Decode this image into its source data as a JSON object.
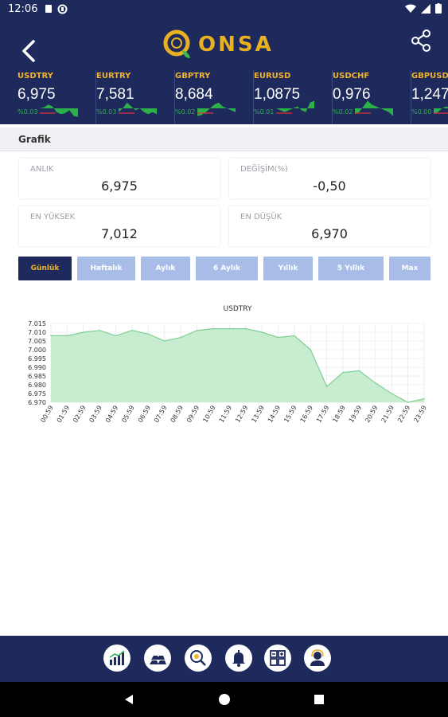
{
  "status_bar": {
    "time": "12:06"
  },
  "header": {
    "logo_text": "ONSA"
  },
  "ticker": [
    {
      "symbol": "USDTRY",
      "value": "6,975",
      "change": "%0.03",
      "spark": [
        0.5,
        0.55,
        0.7,
        0.6,
        0.3,
        0.2,
        0.25,
        0.4,
        0.1,
        0.05
      ]
    },
    {
      "symbol": "EURTRY",
      "value": "7,581",
      "change": "%0.03",
      "spark": [
        0.3,
        0.5,
        0.8,
        0.6,
        0.4,
        0.5,
        0.3,
        0.2,
        0.3,
        0.2
      ]
    },
    {
      "symbol": "GBPTRY",
      "value": "8,684",
      "change": "%0.02",
      "spark": [
        0.1,
        0.15,
        0.3,
        0.5,
        0.7,
        0.8,
        0.6,
        0.5,
        0.4,
        0.3
      ]
    },
    {
      "symbol": "EURUSD",
      "value": "1,0875",
      "change": "%0.01",
      "spark": [
        0.5,
        0.4,
        0.3,
        0.4,
        0.5,
        0.6,
        0.4,
        0.3,
        0.8,
        0.9
      ]
    },
    {
      "symbol": "USDCHF",
      "value": "0,976",
      "change": "%0.02",
      "spark": [
        0.2,
        0.3,
        0.6,
        0.9,
        0.7,
        0.6,
        0.5,
        0.4,
        0.3,
        0.1
      ]
    },
    {
      "symbol": "GBPUSD",
      "value": "1,247",
      "change": "%0.00",
      "spark": [
        0.2,
        0.3,
        0.5,
        0.6,
        0.5,
        0.4,
        0.3,
        0.2,
        0.3,
        0.2
      ]
    }
  ],
  "section": {
    "title": "Grafik"
  },
  "stats": {
    "anlik_label": "ANLIK",
    "anlik_value": "6,975",
    "degisim_label": "DEĞİŞİM(%)",
    "degisim_value": "-0,50",
    "yuksek_label": "EN YÜKSEK",
    "yuksek_value": "7,012",
    "dusuk_label": "EN DÜŞÜK",
    "dusuk_value": "6,970"
  },
  "periods": [
    "Günlük",
    "Haftalık",
    "Aylık",
    "6 Aylık",
    "Yıllık",
    "5 Yıllık",
    "Max"
  ],
  "active_period": "Günlük",
  "colors": {
    "navy": "#1f2a5c",
    "gold": "#f0b429",
    "green": "#2bb04a",
    "red": "#d33",
    "fill": "#c8ecd0",
    "line": "#7fcf95"
  },
  "chart_data": {
    "type": "area",
    "title": "USDTRY",
    "xlabel": "",
    "ylabel": "",
    "x": [
      "00:59",
      "01:59",
      "02:59",
      "03:59",
      "04:59",
      "05:59",
      "06:59",
      "07:59",
      "08:59",
      "09:59",
      "10:59",
      "11:59",
      "12:59",
      "13:59",
      "14:59",
      "15:59",
      "16:59",
      "17:59",
      "18:59",
      "19:59",
      "20:59",
      "21:59",
      "22:59",
      "23:59"
    ],
    "values": [
      7.008,
      7.008,
      7.01,
      7.011,
      7.008,
      7.011,
      7.009,
      7.005,
      7.007,
      7.011,
      7.012,
      7.012,
      7.012,
      7.01,
      7.007,
      7.008,
      7.0,
      6.979,
      6.987,
      6.988,
      6.981,
      6.975,
      6.97,
      6.972
    ],
    "ylim": [
      6.97,
      7.015
    ],
    "yticks": [
      "7.015",
      "7.010",
      "7.005",
      "7.000",
      "6.995",
      "6.990",
      "6.985",
      "6.980",
      "6.975",
      "6.970"
    ],
    "grid": true
  }
}
